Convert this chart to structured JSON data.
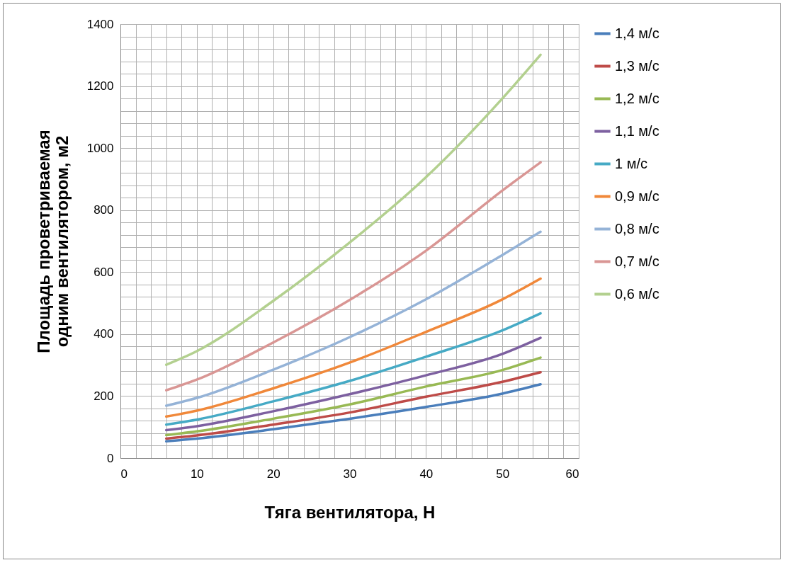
{
  "chart_data": {
    "type": "line",
    "xlabel": "Тяга вентилятора, Н",
    "ylabel": "Площадь проветриваемая одним вентилятором, м2",
    "x": [
      6,
      10,
      20,
      30,
      40,
      50,
      55
    ],
    "series": [
      {
        "name": "1,4 м/с",
        "color": "#4a7ebb",
        "values": [
          54,
          63,
          93,
          127,
          165,
          208,
          238
        ]
      },
      {
        "name": "1,3 м/с",
        "color": "#be4b48",
        "values": [
          63,
          73,
          108,
          147,
          198,
          246,
          277
        ]
      },
      {
        "name": "1,2 м/с",
        "color": "#98b954",
        "values": [
          74,
          86,
          127,
          173,
          231,
          284,
          324
        ]
      },
      {
        "name": "1,1 м/с",
        "color": "#7d60a0",
        "values": [
          90,
          103,
          151,
          206,
          267,
          336,
          388
        ]
      },
      {
        "name": "1 м/с",
        "color": "#46aac5",
        "values": [
          108,
          124,
          183,
          249,
          327,
          412,
          467
        ]
      },
      {
        "name": "0,9 м/с",
        "color": "#f0883a",
        "values": [
          134,
          153,
          225,
          308,
          407,
          512,
          579
        ]
      },
      {
        "name": "0,8 м/с",
        "color": "#95b3d7",
        "values": [
          169,
          194,
          285,
          390,
          512,
          655,
          730
        ]
      },
      {
        "name": "0,7 м/с",
        "color": "#d99694",
        "values": [
          219,
          253,
          373,
          510,
          669,
          863,
          954
        ]
      },
      {
        "name": "0,6 м/с",
        "color": "#b3d08f",
        "values": [
          301,
          345,
          507,
          695,
          906,
          1160,
          1301
        ]
      }
    ],
    "xlim": [
      0,
      60
    ],
    "xticks": [
      0,
      {
        "value": 2,
        "label": null
      },
      {
        "value": 4,
        "label": null
      },
      {
        "value": 6,
        "label": null
      },
      {
        "value": 8,
        "label": null
      },
      10,
      {
        "value": 12,
        "label": null
      },
      {
        "value": 14,
        "label": null
      },
      {
        "value": 16,
        "label": null
      },
      {
        "value": 18,
        "label": null
      },
      20,
      {
        "value": 22,
        "label": null
      },
      {
        "value": 24,
        "label": null
      },
      {
        "value": 26,
        "label": null
      },
      {
        "value": 28,
        "label": null
      },
      30,
      {
        "value": 32,
        "label": null
      },
      {
        "value": 34,
        "label": null
      },
      {
        "value": 36,
        "label": null
      },
      {
        "value": 38,
        "label": null
      },
      40,
      {
        "value": 42,
        "label": null
      },
      {
        "value": 44,
        "label": null
      },
      {
        "value": 46,
        "label": null
      },
      {
        "value": 48,
        "label": null
      },
      50,
      {
        "value": 52,
        "label": null
      },
      {
        "value": 54,
        "label": null
      },
      {
        "value": 56,
        "label": null
      },
      {
        "value": 58,
        "label": null
      },
      60
    ],
    "ylim": [
      0,
      1400
    ],
    "yticks": [
      0,
      {
        "value": 40,
        "label": null
      },
      {
        "value": 80,
        "label": null
      },
      {
        "value": 120,
        "label": null
      },
      {
        "value": 160,
        "label": null
      },
      200,
      {
        "value": 240,
        "label": null
      },
      {
        "value": 280,
        "label": null
      },
      {
        "value": 320,
        "label": null
      },
      {
        "value": 360,
        "label": null
      },
      400,
      {
        "value": 440,
        "label": null
      },
      {
        "value": 480,
        "label": null
      },
      {
        "value": 520,
        "label": null
      },
      {
        "value": 560,
        "label": null
      },
      600,
      {
        "value": 640,
        "label": null
      },
      {
        "value": 680,
        "label": null
      },
      {
        "value": 720,
        "label": null
      },
      {
        "value": 760,
        "label": null
      },
      800,
      {
        "value": 840,
        "label": null
      },
      {
        "value": 880,
        "label": null
      },
      {
        "value": 920,
        "label": null
      },
      {
        "value": 960,
        "label": null
      },
      1000,
      {
        "value": 1040,
        "label": null
      },
      {
        "value": 1080,
        "label": null
      },
      {
        "value": 1120,
        "label": null
      },
      {
        "value": 1160,
        "label": null
      },
      1200,
      {
        "value": 1240,
        "label": null
      },
      {
        "value": 1280,
        "label": null
      },
      {
        "value": 1320,
        "label": null
      },
      {
        "value": 1360,
        "label": null
      },
      1400
    ],
    "grid": true,
    "legend": "right",
    "line_style": "solid",
    "marker": "none"
  }
}
